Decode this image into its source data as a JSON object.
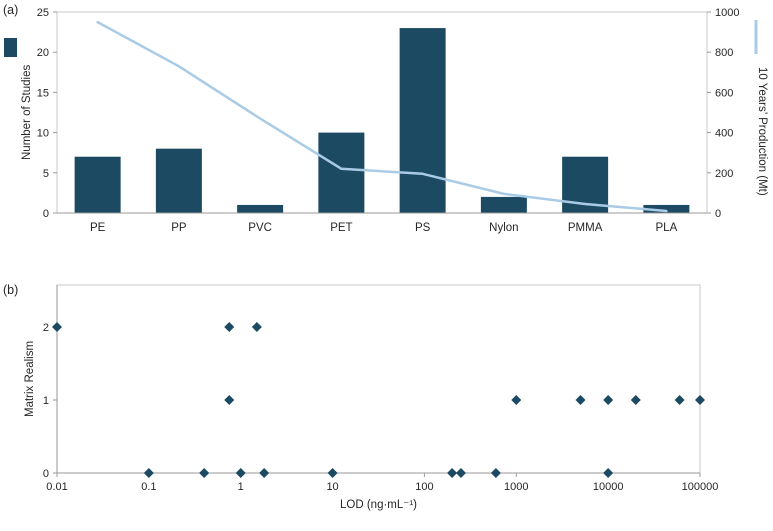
{
  "panels": {
    "a": {
      "label": "(a)"
    },
    "b": {
      "label": "(b)"
    }
  },
  "colors": {
    "bar": "#1c4a63",
    "line": "#a9cbe6",
    "marker": "#1c4a63",
    "axis_line": "#9a9a9a",
    "plot_border": "#c8c8c8",
    "text": "#262626"
  },
  "chart_data": [
    {
      "type": "bar",
      "panel": "(a)",
      "title": "",
      "categories": [
        "PE",
        "PP",
        "PVC",
        "PET",
        "PS",
        "Nylon",
        "PMMA",
        "PLA"
      ],
      "series": [
        {
          "name": "Number of Studies",
          "type": "bar",
          "axis": "left",
          "values": [
            7,
            8,
            1,
            10,
            23,
            2,
            7,
            1
          ]
        },
        {
          "name": "10 Years’ Production (Mt)",
          "type": "line",
          "axis": "right",
          "values": [
            950,
            730,
            470,
            220,
            195,
            95,
            45,
            10
          ]
        }
      ],
      "left_axis": {
        "label": "Number of Studies",
        "min": 0,
        "max": 25,
        "ticks": [
          0,
          5,
          10,
          15,
          20,
          25
        ]
      },
      "right_axis": {
        "label": "10 Years’ Production (Mt)",
        "min": 0,
        "max": 1000,
        "ticks": [
          0,
          200,
          400,
          600,
          800,
          1000
        ]
      },
      "grid": false,
      "legend_position": "edge-markers"
    },
    {
      "type": "scatter",
      "panel": "(b)",
      "title": "",
      "x_axis": {
        "label": "LOD (ng·mL⁻¹)",
        "scale": "log",
        "min": 0.01,
        "max": 100000,
        "ticks": [
          0.01,
          0.1,
          1,
          10,
          100,
          1000,
          10000,
          100000
        ],
        "tick_labels": [
          "0.01",
          "0.1",
          "1",
          "10",
          "100",
          "1000",
          "10000",
          "100000"
        ]
      },
      "y_axis": {
        "label": "Matrix Realism",
        "min": 0,
        "max": 2.5,
        "ticks": [
          0,
          1,
          2
        ]
      },
      "grid": false,
      "points": [
        {
          "x": 0.01,
          "y": 2
        },
        {
          "x": 0.75,
          "y": 2
        },
        {
          "x": 1.5,
          "y": 2
        },
        {
          "x": 0.75,
          "y": 1
        },
        {
          "x": 1000,
          "y": 1
        },
        {
          "x": 5000,
          "y": 1
        },
        {
          "x": 10000,
          "y": 1
        },
        {
          "x": 20000,
          "y": 1
        },
        {
          "x": 60000,
          "y": 1
        },
        {
          "x": 100000,
          "y": 1
        },
        {
          "x": 0.1,
          "y": 0
        },
        {
          "x": 0.4,
          "y": 0
        },
        {
          "x": 1,
          "y": 0
        },
        {
          "x": 1.8,
          "y": 0
        },
        {
          "x": 10,
          "y": 0
        },
        {
          "x": 200,
          "y": 0
        },
        {
          "x": 250,
          "y": 0
        },
        {
          "x": 600,
          "y": 0
        },
        {
          "x": 10000,
          "y": 0
        }
      ]
    }
  ]
}
